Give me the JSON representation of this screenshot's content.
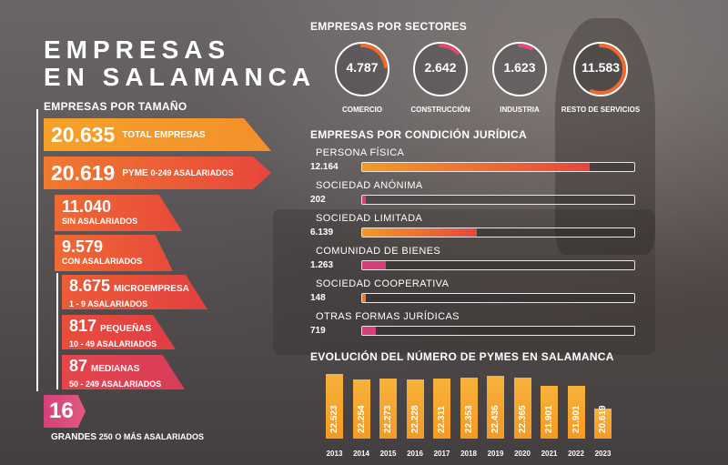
{
  "title_line1": "EMPRESAS",
  "title_line2": "EN SALAMANCA",
  "sections": {
    "tamano": "EMPRESAS POR TAMAÑO",
    "sectores": "EMPRESAS POR SECTORES",
    "juridica": "EMPRESAS POR CONDICIÓN JURÍDICA",
    "evolucion": "EVOLUCIÓN DEL NÚMERO DE PYMES EN SALAMANCA"
  },
  "tamano": {
    "total": {
      "value": "20.635",
      "label": "TOTAL EMPRESAS"
    },
    "pyme": {
      "value": "20.619",
      "label": "PYME",
      "sub": "0-249 ASALARIADOS"
    },
    "sin": {
      "value": "11.040",
      "label": "SIN ASALARIADOS"
    },
    "con": {
      "value": "9.579",
      "label": "CON ASALARIADOS"
    },
    "micro": {
      "value": "8.675",
      "label": "MICROEMPRESA",
      "sub": "1 - 9 ASALARIADOS"
    },
    "pequenas": {
      "value": "817",
      "label": "PEQUEÑAS",
      "sub": "10 - 49 ASALARIADOS"
    },
    "medianas": {
      "value": "87",
      "label": "MEDIANAS",
      "sub": "50 - 249 ASALARIADOS"
    },
    "grandes": {
      "value": "16",
      "label": "GRANDES",
      "sub": "250 O MÁS ASALARIADOS"
    }
  },
  "colors": {
    "orange": "#f39a25",
    "red": "#e8463c",
    "pink": "#d6407a",
    "ring_bg": "#ffffff"
  },
  "chart_data": [
    {
      "type": "pie",
      "title": "EMPRESAS POR SECTORES",
      "categories": [
        "COMERCIO",
        "CONSTRUCCIÓN",
        "INDUSTRIA",
        "RESTO DE SERVICIOS"
      ],
      "values": [
        4787,
        2642,
        1623,
        11583
      ],
      "labels": [
        "4.787",
        "2.642",
        "1.623",
        "11.583"
      ]
    },
    {
      "type": "bar",
      "title": "EMPRESAS POR CONDICIÓN JURÍDICA",
      "categories": [
        "PERSONA FÍSICA",
        "SOCIEDAD ANÓNIMA",
        "SOCIEDAD LIMITADA",
        "COMUNIDAD DE BIENES",
        "SOCIEDAD COOPERATIVA",
        "OTRAS FORMAS JURÍDICAS"
      ],
      "values": [
        12164,
        202,
        6139,
        1263,
        148,
        719
      ],
      "labels": [
        "12.164",
        "202",
        "6.139",
        "1.263",
        "148",
        "719"
      ],
      "xlim": [
        0,
        14500
      ]
    },
    {
      "type": "bar",
      "title": "EVOLUCIÓN DEL NÚMERO DE PYMES EN SALAMANCA",
      "categories": [
        "2013",
        "2014",
        "2015",
        "2016",
        "2017",
        "2018",
        "2019",
        "2020",
        "2021",
        "2022",
        "2023"
      ],
      "values": [
        22523,
        22254,
        22273,
        22228,
        22311,
        22353,
        22436,
        22365,
        21901,
        21901,
        20619
      ],
      "labels": [
        "22.523",
        "22.254",
        "22.273",
        "22.228",
        "22.311",
        "22.353",
        "22.436",
        "22.365",
        "21.901",
        "21.901",
        "20.619"
      ],
      "ylim": [
        18900,
        22700
      ]
    }
  ]
}
